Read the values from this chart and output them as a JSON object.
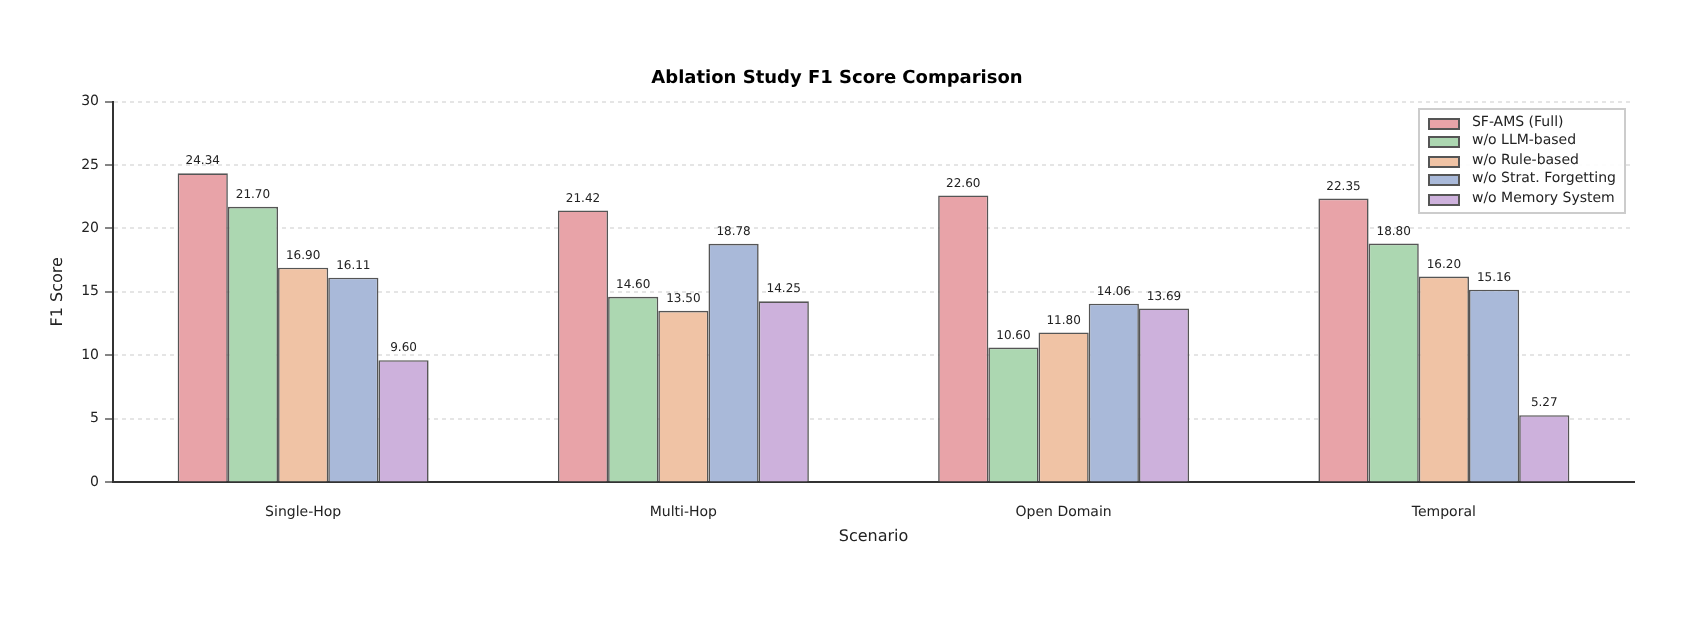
{
  "chart_data": {
    "type": "bar",
    "title": "Ablation Study F1 Score Comparison",
    "xlabel": "Scenario",
    "ylabel": "F1 Score",
    "categories": [
      "Single-Hop",
      "Multi-Hop",
      "Open Domain",
      "Temporal"
    ],
    "series": [
      {
        "name": "SF-AMS (Full)",
        "color": "#e8a3a8",
        "values": [
          24.34,
          21.42,
          22.6,
          22.35
        ],
        "value_labels": [
          "24.34",
          "21.42",
          "22.60",
          "22.35"
        ]
      },
      {
        "name": "w/o LLM-based",
        "color": "#acd7b1",
        "values": [
          21.7,
          14.6,
          10.6,
          18.8
        ],
        "value_labels": [
          "21.70",
          "14.60",
          "10.60",
          "18.80"
        ]
      },
      {
        "name": "w/o Rule-based",
        "color": "#f0c3a5",
        "values": [
          16.9,
          13.5,
          11.8,
          16.2
        ],
        "value_labels": [
          "16.90",
          "13.50",
          "11.80",
          "16.20"
        ]
      },
      {
        "name": "w/o Strat. Forgetting",
        "color": "#a9b9d9",
        "values": [
          16.11,
          18.78,
          14.06,
          15.16
        ],
        "value_labels": [
          "16.11",
          "18.78",
          "14.06",
          "15.16"
        ]
      },
      {
        "name": "w/o Memory System",
        "color": "#cdb1dc",
        "values": [
          9.6,
          14.25,
          13.69,
          5.27
        ],
        "value_labels": [
          "9.60",
          "14.25",
          "13.69",
          "5.27"
        ]
      }
    ],
    "ylim": [
      0,
      30
    ],
    "yticks": [
      0,
      5,
      10,
      15,
      20,
      25,
      30
    ],
    "grid": "y",
    "legend": "top right"
  }
}
